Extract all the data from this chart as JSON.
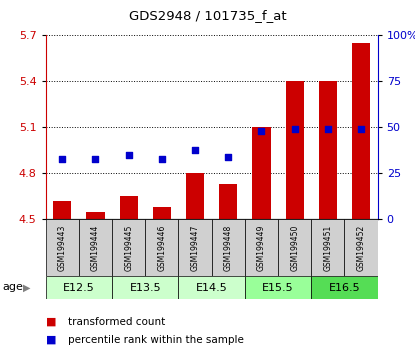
{
  "title": "GDS2948 / 101735_f_at",
  "samples": [
    "GSM199443",
    "GSM199444",
    "GSM199445",
    "GSM199446",
    "GSM199447",
    "GSM199448",
    "GSM199449",
    "GSM199450",
    "GSM199451",
    "GSM199452"
  ],
  "transformed_counts": [
    4.62,
    4.55,
    4.65,
    4.58,
    4.8,
    4.73,
    5.1,
    5.4,
    5.4,
    5.65
  ],
  "percentile_ranks": [
    33,
    33,
    35,
    33,
    38,
    34,
    48,
    49,
    49,
    49
  ],
  "ylim_left": [
    4.5,
    5.7
  ],
  "ylim_right": [
    0,
    100
  ],
  "yticks_left": [
    4.5,
    4.8,
    5.1,
    5.4,
    5.7
  ],
  "yticks_right": [
    0,
    25,
    50,
    75,
    100
  ],
  "bar_color": "#cc0000",
  "dot_color": "#0000cc",
  "bar_bottom": 4.5,
  "age_groups": [
    {
      "label": "E12.5",
      "start": 0,
      "end": 2,
      "color": "#ccffcc"
    },
    {
      "label": "E13.5",
      "start": 2,
      "end": 4,
      "color": "#ccffcc"
    },
    {
      "label": "E14.5",
      "start": 4,
      "end": 6,
      "color": "#ccffcc"
    },
    {
      "label": "E15.5",
      "start": 6,
      "end": 8,
      "color": "#99ff99"
    },
    {
      "label": "E16.5",
      "start": 8,
      "end": 10,
      "color": "#55dd55"
    }
  ],
  "sample_bg_color": "#d0d0d0",
  "legend_items": [
    {
      "label": "transformed count",
      "color": "#cc0000"
    },
    {
      "label": "percentile rank within the sample",
      "color": "#0000cc"
    }
  ]
}
